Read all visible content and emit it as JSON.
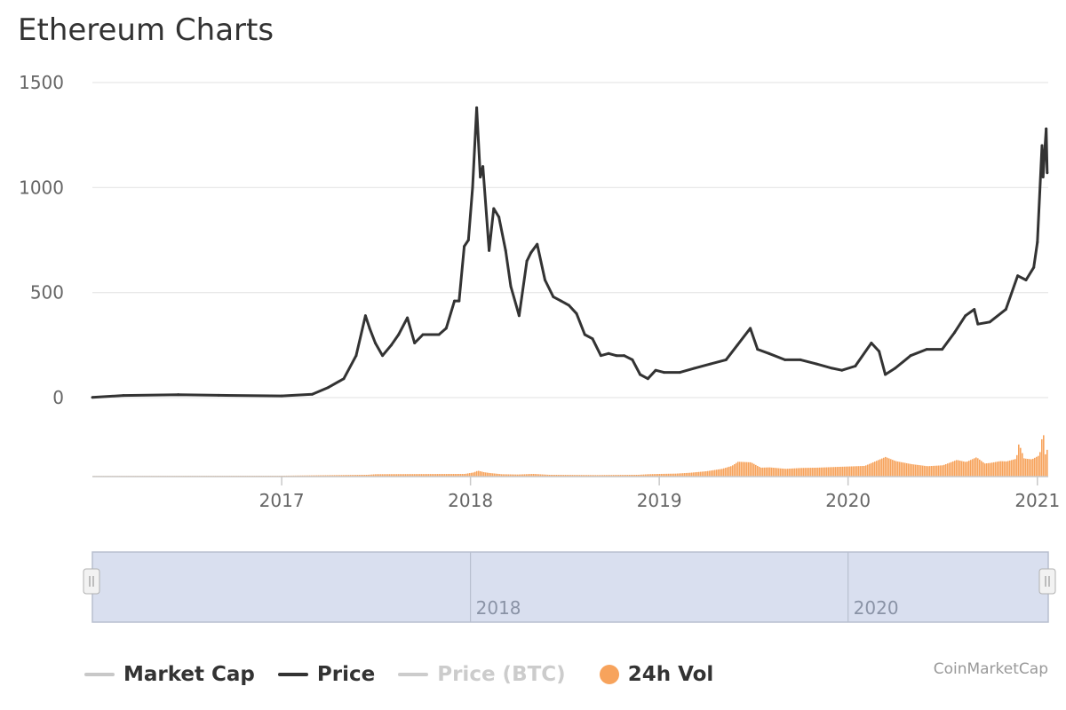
{
  "title": "Ethereum Charts",
  "credit": "CoinMarketCap",
  "legend": [
    {
      "label": "Market Cap",
      "color": "#c8c8c8",
      "text_color": "#333333",
      "kind": "line"
    },
    {
      "label": "Price",
      "color": "#333333",
      "text_color": "#333333",
      "kind": "line"
    },
    {
      "label": "Price (BTC)",
      "color": "#cccccc",
      "text_color": "#cccccc",
      "kind": "line"
    },
    {
      "label": "24h Vol",
      "color": "#f7a35c",
      "text_color": "#333333",
      "kind": "dot"
    }
  ],
  "navigator": {
    "tick_labels": [
      "2018",
      "2020"
    ]
  },
  "chart_data": {
    "type": "line",
    "title": "Ethereum Charts",
    "xlabel": "",
    "ylabel": "",
    "x_ticks": [
      "2017",
      "2018",
      "2019",
      "2020",
      "2021"
    ],
    "y_ticks": [
      0,
      500,
      1000,
      1500
    ],
    "ylim": [
      0,
      1500
    ],
    "xlim": [
      "2016-01-01",
      "2021-01-22"
    ],
    "grid": true,
    "legend_position": "bottom",
    "series": [
      {
        "name": "Price",
        "color": "#333333",
        "x": [
          "2016-01-01",
          "2016-03-01",
          "2016-06-15",
          "2016-09-01",
          "2017-01-01",
          "2017-03-01",
          "2017-04-01",
          "2017-05-01",
          "2017-05-25",
          "2017-06-12",
          "2017-06-20",
          "2017-07-01",
          "2017-07-15",
          "2017-08-01",
          "2017-08-15",
          "2017-09-01",
          "2017-09-15",
          "2017-10-01",
          "2017-10-15",
          "2017-11-01",
          "2017-11-15",
          "2017-12-01",
          "2017-12-10",
          "2017-12-20",
          "2017-12-28",
          "2018-01-05",
          "2018-01-13",
          "2018-01-20",
          "2018-01-25",
          "2018-02-06",
          "2018-02-15",
          "2018-02-25",
          "2018-03-10",
          "2018-03-20",
          "2018-04-05",
          "2018-04-20",
          "2018-04-28",
          "2018-05-10",
          "2018-05-25",
          "2018-06-10",
          "2018-06-25",
          "2018-07-10",
          "2018-07-25",
          "2018-08-10",
          "2018-08-25",
          "2018-09-10",
          "2018-09-25",
          "2018-10-10",
          "2018-10-25",
          "2018-11-10",
          "2018-11-25",
          "2018-12-10",
          "2018-12-25",
          "2019-01-10",
          "2019-02-10",
          "2019-03-10",
          "2019-04-10",
          "2019-05-10",
          "2019-06-01",
          "2019-06-26",
          "2019-07-10",
          "2019-08-01",
          "2019-09-01",
          "2019-10-01",
          "2019-11-01",
          "2019-12-01",
          "2019-12-20",
          "2020-01-15",
          "2020-02-15",
          "2020-03-01",
          "2020-03-13",
          "2020-04-01",
          "2020-05-01",
          "2020-06-01",
          "2020-07-01",
          "2020-07-25",
          "2020-08-15",
          "2020-09-01",
          "2020-09-08",
          "2020-10-01",
          "2020-11-01",
          "2020-11-24",
          "2020-12-10",
          "2020-12-25",
          "2021-01-01",
          "2021-01-10",
          "2021-01-12",
          "2021-01-18",
          "2021-01-20"
        ],
        "y": [
          1,
          10,
          14,
          11,
          8,
          16,
          48,
          90,
          200,
          390,
          330,
          260,
          200,
          250,
          300,
          380,
          260,
          300,
          300,
          300,
          330,
          460,
          460,
          720,
          750,
          1000,
          1380,
          1050,
          1100,
          700,
          900,
          860,
          700,
          530,
          390,
          650,
          690,
          730,
          560,
          480,
          460,
          440,
          400,
          300,
          280,
          200,
          210,
          200,
          200,
          180,
          110,
          90,
          130,
          120,
          120,
          140,
          160,
          180,
          250,
          330,
          230,
          210,
          180,
          180,
          160,
          140,
          130,
          150,
          260,
          220,
          110,
          140,
          200,
          230,
          230,
          310,
          390,
          420,
          350,
          360,
          420,
          580,
          560,
          620,
          740,
          1200,
          1050,
          1280,
          1070
        ]
      }
    ],
    "volume": {
      "name": "24h Vol",
      "color": "#f7a35c",
      "x": [
        "2016-01-01",
        "2017-01-01",
        "2017-06-15",
        "2017-07-01",
        "2017-12-20",
        "2018-01-06",
        "2018-01-14",
        "2018-01-25",
        "2018-02-06",
        "2018-03-01",
        "2018-04-01",
        "2018-05-01",
        "2018-06-01",
        "2018-09-01",
        "2018-11-20",
        "2018-12-10",
        "2019-01-01",
        "2019-02-01",
        "2019-03-01",
        "2019-04-01",
        "2019-05-01",
        "2019-05-20",
        "2019-06-01",
        "2019-06-26",
        "2019-07-15",
        "2019-08-01",
        "2019-09-01",
        "2019-10-01",
        "2019-11-01",
        "2019-12-01",
        "2020-01-01",
        "2020-02-01",
        "2020-03-12",
        "2020-04-01",
        "2020-05-01",
        "2020-06-01",
        "2020-07-01",
        "2020-07-28",
        "2020-08-15",
        "2020-09-04",
        "2020-09-20",
        "2020-10-01",
        "2020-10-20",
        "2020-11-01",
        "2020-11-20",
        "2020-11-25",
        "2020-12-05",
        "2020-12-20",
        "2021-01-04",
        "2021-01-11",
        "2021-01-14",
        "2021-01-19",
        "2021-01-21"
      ],
      "values": [
        0.2,
        0.3,
        0.6,
        0.8,
        0.9,
        1.4,
        2.0,
        1.5,
        1.2,
        0.8,
        0.7,
        0.9,
        0.6,
        0.5,
        0.6,
        0.8,
        0.9,
        1.0,
        1.3,
        1.8,
        2.6,
        3.6,
        5.0,
        4.8,
        3.0,
        3.1,
        2.6,
        2.9,
        3.0,
        3.2,
        3.4,
        3.6,
        6.6,
        5.2,
        4.2,
        3.5,
        3.8,
        5.6,
        4.9,
        6.5,
        4.4,
        4.6,
        5.2,
        5.1,
        6.0,
        11.2,
        6.1,
        5.8,
        7.2,
        16.0,
        7.0,
        9.2,
        20.0
      ],
      "unit": "B",
      "max": 20
    }
  }
}
